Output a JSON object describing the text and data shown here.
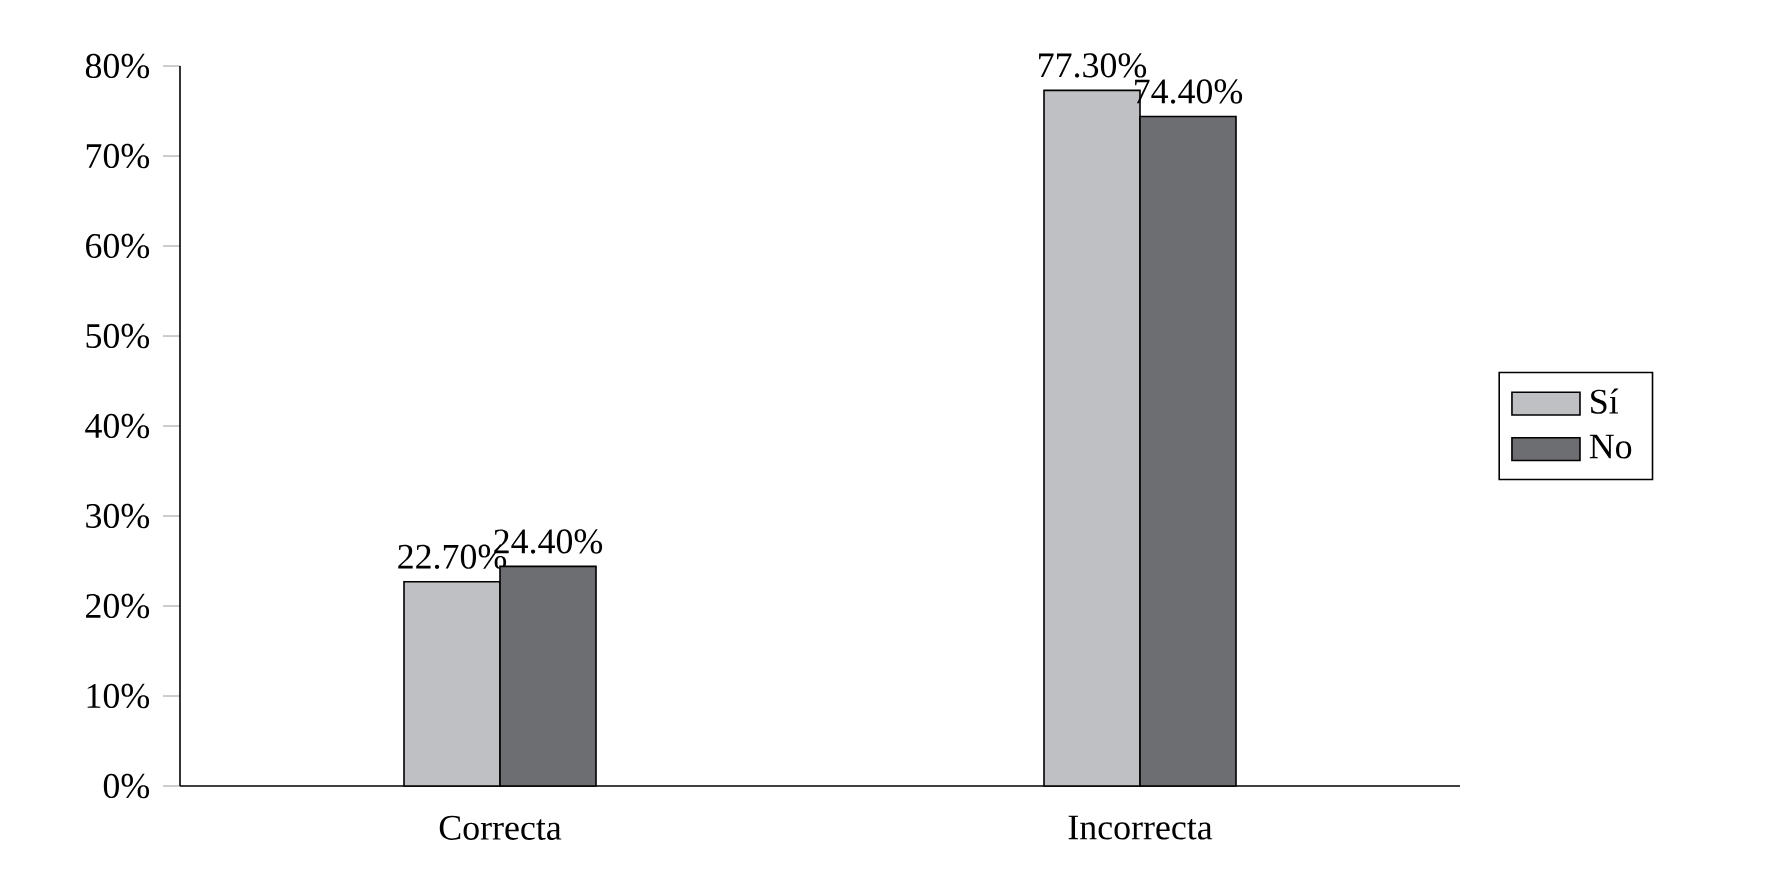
{
  "chart_data": {
    "type": "bar",
    "categories": [
      "Correcta",
      "Incorrecta"
    ],
    "series": [
      {
        "name": "Sí",
        "color": "#bfc0c4",
        "values": [
          22.7,
          77.3
        ],
        "value_labels": [
          "22.70%",
          "77.30%"
        ]
      },
      {
        "name": "No",
        "color": "#6d6e72",
        "values": [
          24.4,
          74.4
        ],
        "value_labels": [
          "24.40%",
          "74.40%"
        ]
      }
    ],
    "ylim": [
      0,
      80
    ],
    "yticks": [
      {
        "value": 0,
        "label": "0%"
      },
      {
        "value": 10,
        "label": "10%"
      },
      {
        "value": 20,
        "label": "20%"
      },
      {
        "value": 30,
        "label": "30%"
      },
      {
        "value": 40,
        "label": "40%"
      },
      {
        "value": 50,
        "label": "50%"
      },
      {
        "value": 60,
        "label": "60%"
      },
      {
        "value": 70,
        "label": "70%"
      },
      {
        "value": 80,
        "label": "80%"
      }
    ],
    "legend": "right",
    "grid": false
  }
}
